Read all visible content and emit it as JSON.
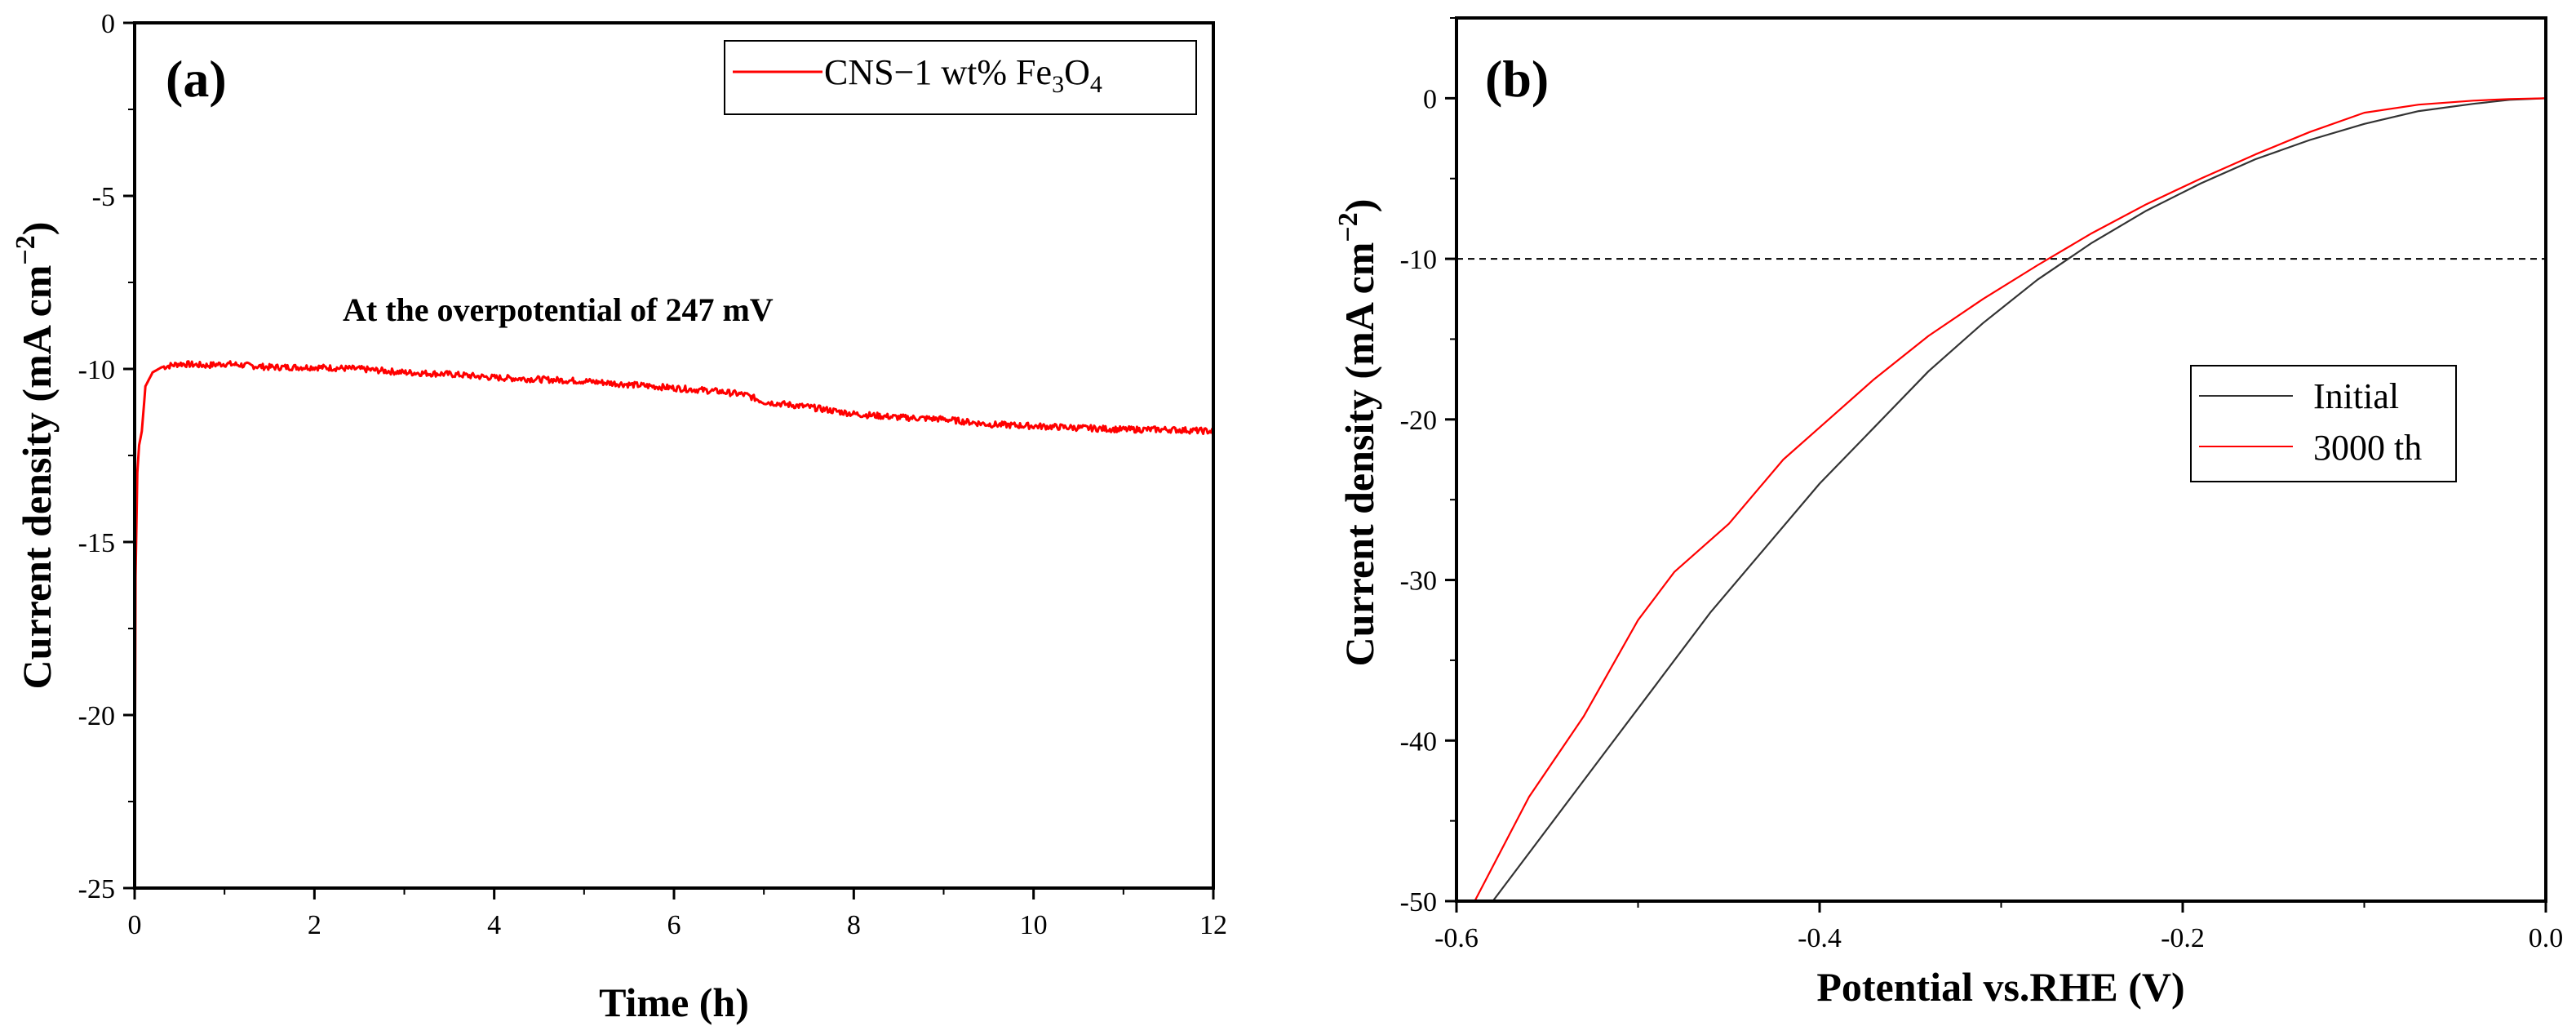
{
  "chart_data": [
    {
      "type": "line",
      "panel_label": "(a)",
      "xlabel": "Time (h)",
      "ylabel_main": "Current density (mA cm",
      "ylabel_sup": "−2",
      "ylabel_close": ")",
      "xlim": [
        0,
        12
      ],
      "ylim": [
        -25,
        0
      ],
      "xticks": [
        0,
        2,
        4,
        6,
        8,
        10,
        12
      ],
      "xtick_labels": [
        "0",
        "2",
        "4",
        "6",
        "8",
        "10",
        "12"
      ],
      "yticks": [
        0,
        -5,
        -10,
        -15,
        -20,
        -25
      ],
      "ytick_labels": [
        "0",
        "-5",
        "-10",
        "-15",
        "-20",
        "-25"
      ],
      "annotation": "At the overpotential of 247 mV",
      "legend": {
        "position": "top-right",
        "entries": [
          {
            "label_main": "CNS−1 wt% Fe",
            "sub1": "3",
            "mid": "O",
            "sub2": "4",
            "color": "#ff0000"
          }
        ]
      },
      "series": [
        {
          "name": "CNS-1 wt% Fe3O4",
          "color": "#ff0000",
          "x": [
            0,
            0.01,
            0.03,
            0.05,
            0.08,
            0.12,
            0.2,
            0.3,
            0.5,
            0.8,
            1.0,
            1.5,
            2.0,
            2.5,
            3.0,
            3.5,
            4.0,
            4.5,
            5.0,
            5.5,
            6.0,
            6.5,
            6.8,
            7.0,
            7.5,
            8.0,
            8.5,
            9.0,
            9.5,
            10.0,
            10.5,
            11.0,
            11.5,
            12.0
          ],
          "y": [
            -23.0,
            -16.0,
            -13.0,
            -12.2,
            -11.8,
            -10.5,
            -10.1,
            -9.95,
            -9.85,
            -9.9,
            -9.85,
            -9.95,
            -9.95,
            -10.0,
            -10.1,
            -10.15,
            -10.25,
            -10.3,
            -10.35,
            -10.45,
            -10.55,
            -10.65,
            -10.75,
            -10.95,
            -11.1,
            -11.3,
            -11.4,
            -11.45,
            -11.6,
            -11.65,
            -11.7,
            -11.75,
            -11.75,
            -11.8
          ]
        }
      ]
    },
    {
      "type": "line",
      "panel_label": "(b)",
      "xlabel": "Potential vs.RHE (V)",
      "ylabel_main": "Current density (mA cm",
      "ylabel_sup": "−2",
      "ylabel_close": ")",
      "xlim": [
        -0.6,
        0.0
      ],
      "ylim": [
        -50,
        5
      ],
      "xticks": [
        -0.6,
        -0.4,
        -0.2,
        0.0
      ],
      "xtick_labels": [
        "-0.6",
        "-0.4",
        "-0.2",
        "0.0"
      ],
      "yticks": [
        0,
        -10,
        -20,
        -30,
        -40,
        -50
      ],
      "ytick_labels": [
        "0",
        "-10",
        "-20",
        "-30",
        "-40",
        "-50"
      ],
      "reference_line_y": -10,
      "legend": {
        "position": "center-right",
        "entries": [
          {
            "label": "Initial",
            "color": "#333333"
          },
          {
            "label": "3000 th",
            "color": "#ff0000"
          }
        ]
      },
      "series": [
        {
          "name": "Initial",
          "color": "#333333",
          "x": [
            -0.58,
            -0.55,
            -0.52,
            -0.49,
            -0.46,
            -0.43,
            -0.4,
            -0.37,
            -0.34,
            -0.31,
            -0.28,
            -0.25,
            -0.22,
            -0.19,
            -0.16,
            -0.13,
            -0.1,
            -0.07,
            -0.04,
            -0.02,
            0.0
          ],
          "y": [
            -50.0,
            -45.5,
            -41.0,
            -36.5,
            -32.0,
            -28.0,
            -24.0,
            -20.5,
            -17.0,
            -14.0,
            -11.3,
            -9.0,
            -7.0,
            -5.3,
            -3.8,
            -2.6,
            -1.6,
            -0.8,
            -0.35,
            -0.1,
            0.0
          ]
        },
        {
          "name": "3000 th",
          "color": "#ff0000",
          "x": [
            -0.59,
            -0.56,
            -0.53,
            -0.5,
            -0.48,
            -0.45,
            -0.42,
            -0.4,
            -0.37,
            -0.34,
            -0.31,
            -0.28,
            -0.25,
            -0.22,
            -0.19,
            -0.16,
            -0.13,
            -0.1,
            -0.07,
            -0.04,
            -0.02,
            0.0
          ],
          "y": [
            -50.0,
            -43.5,
            -38.5,
            -32.5,
            -29.5,
            -26.5,
            -22.5,
            -20.5,
            -17.5,
            -14.8,
            -12.5,
            -10.4,
            -8.4,
            -6.6,
            -5.0,
            -3.5,
            -2.1,
            -0.9,
            -0.4,
            -0.15,
            -0.05,
            0.0
          ]
        }
      ]
    }
  ]
}
